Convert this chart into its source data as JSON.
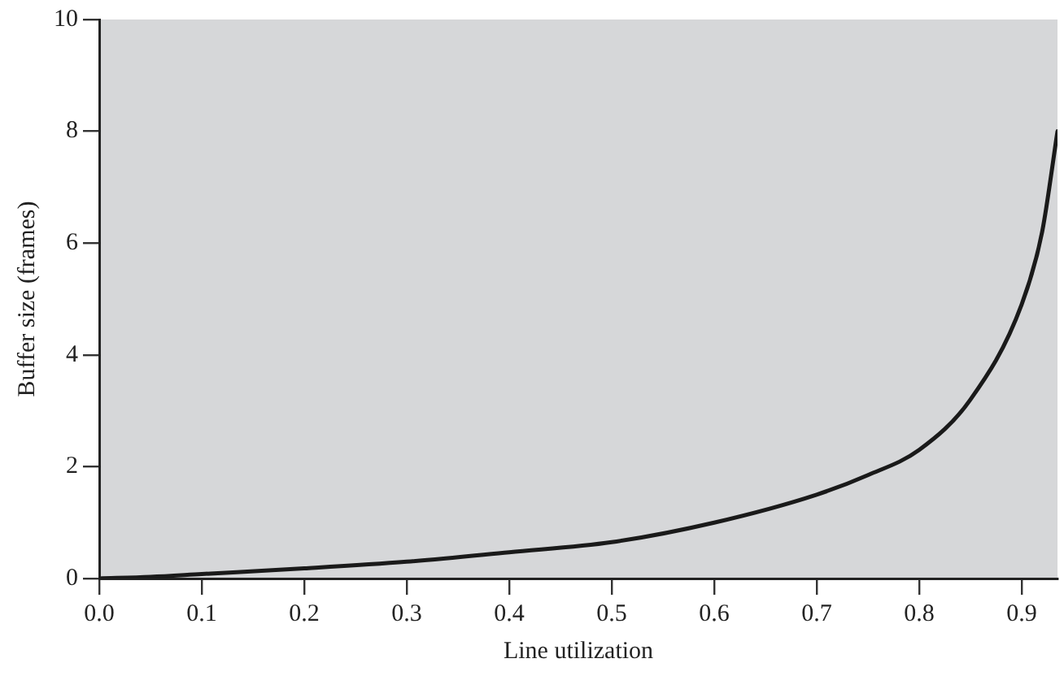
{
  "chart_data": {
    "type": "line",
    "xlabel": "Line utilization",
    "ylabel": "Buffer size (frames)",
    "x": [
      0,
      0.05,
      0.1,
      0.2,
      0.3,
      0.4,
      0.5,
      0.6,
      0.7,
      0.75,
      0.8,
      0.85,
      0.9,
      0.92,
      0.935
    ],
    "series": [
      {
        "color": "#1a1a1a",
        "values": [
          0,
          0.03,
          0.08,
          0.18,
          0.3,
          0.47,
          0.65,
          1.0,
          1.5,
          1.85,
          2.3,
          3.2,
          4.9,
          6.2,
          8.0
        ]
      }
    ],
    "xlim": [
      0,
      0.935
    ],
    "xticks": [
      "0.0",
      0.1,
      0.2,
      0.3,
      0.4,
      0.5,
      0.6,
      0.7,
      0.8,
      0.9
    ],
    "ylim": [
      0,
      10
    ],
    "yticks": [
      0,
      2,
      4,
      6,
      8,
      10
    ],
    "grid": false,
    "legend": false,
    "marker": "none",
    "line_style": "solid"
  }
}
